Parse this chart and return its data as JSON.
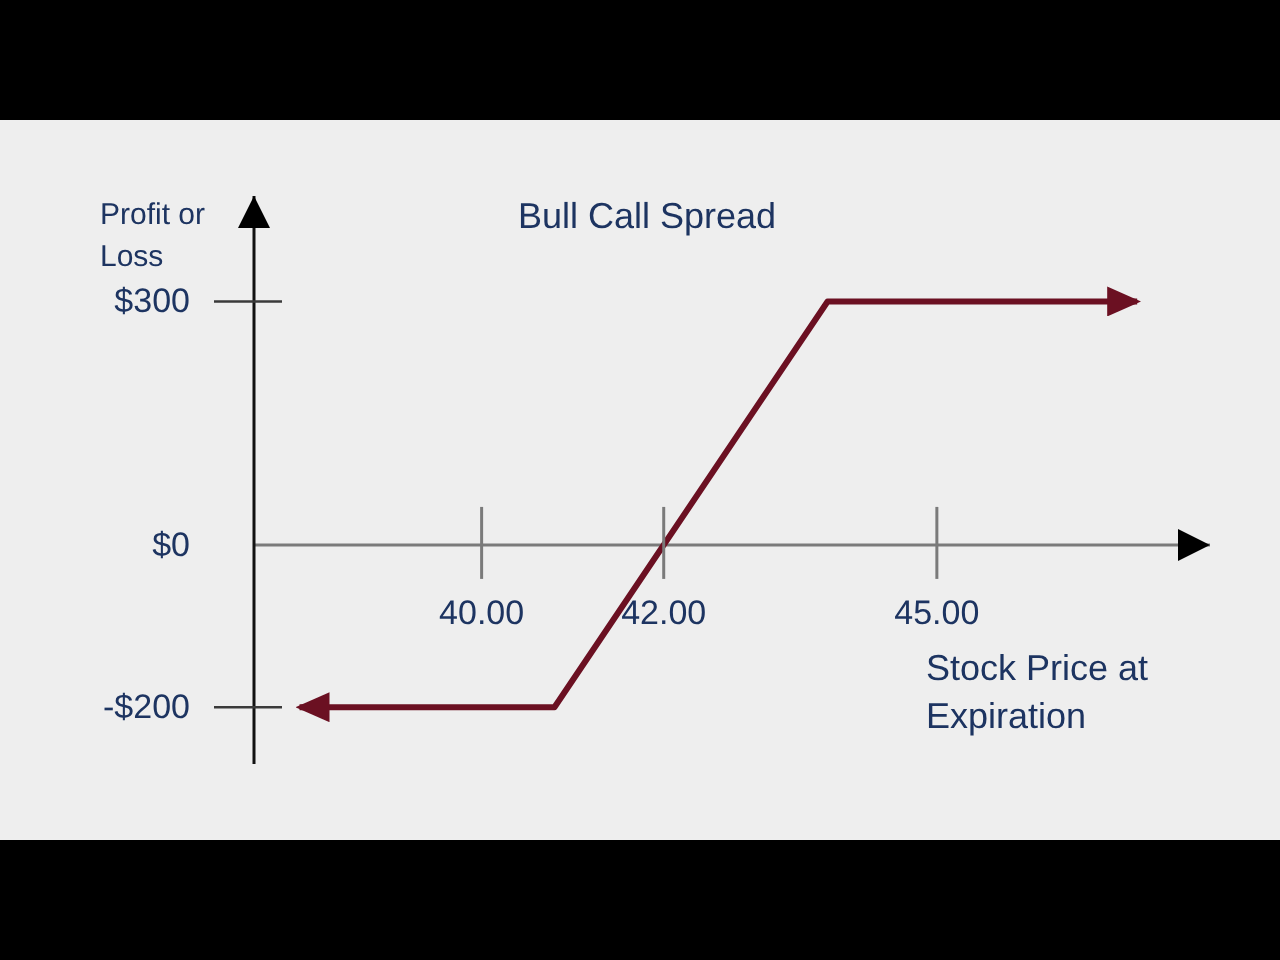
{
  "chart_data": {
    "type": "line",
    "title": "Bull Call Spread",
    "xlabel": "Stock Price at Expiration",
    "ylabel": "Profit or Loss",
    "x": [
      38,
      40.8,
      43.8,
      47.2
    ],
    "series": [
      {
        "color": "#6b1022",
        "values": [
          -200,
          -200,
          300,
          300
        ]
      }
    ],
    "xlim": [
      37.5,
      48
    ],
    "xticks": [
      {
        "value": 40,
        "label": "40.00"
      },
      {
        "value": 42,
        "label": "42.00"
      },
      {
        "value": 45,
        "label": "45.00"
      }
    ],
    "ylim": [
      -270,
      430
    ],
    "yticks": [
      {
        "value": -200,
        "label": "-$200"
      },
      {
        "value": 0,
        "label": "$0"
      },
      {
        "value": 300,
        "label": "$300"
      }
    ],
    "marker": "none",
    "line_style": "solid"
  }
}
